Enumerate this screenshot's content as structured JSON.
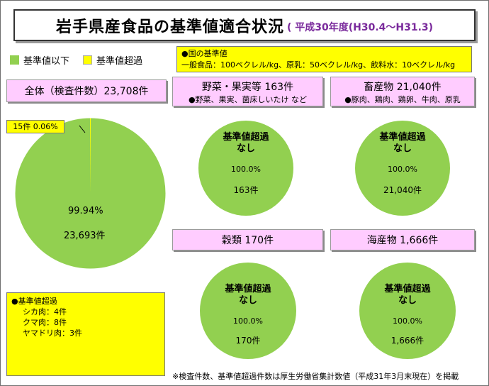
{
  "title": {
    "main": "岩手県産食品の基準値適合状況",
    "sub": "( 平成30年度(H30.4～H31.3)"
  },
  "legend": [
    {
      "label": "基準値以下",
      "color": "#92d050"
    },
    {
      "label": "基準値超過",
      "color": "#ffff00"
    }
  ],
  "standard": {
    "heading": "●国の基準値",
    "detail": "一般食品：100ベクレル/kg、原乳：50ベクレル/kg、飲料水：10ベクレル/kg"
  },
  "overall": {
    "header": "全体（検査件数）23,708件",
    "exceed_label": "15件  0.06%",
    "pct_label": "99.94%",
    "count_label": "23,693件"
  },
  "panels": [
    {
      "header": "野菜・果実等 163件",
      "sub": "●野菜、果実、菌床しいたけ など",
      "circle_title": "基準値超過",
      "circle_title2": "なし",
      "pct": "100.0%",
      "count": "163件"
    },
    {
      "header": "畜産物 21,040件",
      "sub": "●豚肉、鶏肉、鶏卵、牛肉、原乳",
      "circle_title": "基準値超過",
      "circle_title2": "なし",
      "pct": "100.0%",
      "count": "21,040件"
    },
    {
      "header": "穀類 170件",
      "sub": "",
      "circle_title": "基準値超過",
      "circle_title2": "なし",
      "pct": "100.0%",
      "count": "170件"
    },
    {
      "header": "海産物 1,666件",
      "sub": "",
      "circle_title": "基準値超過",
      "circle_title2": "なし",
      "pct": "100.0%",
      "count": "1,666件"
    }
  ],
  "exceed_note": {
    "heading": "●基準値超過",
    "items": [
      "シカ肉：4件",
      "クマ肉：8件",
      "ヤマドリ肉：3件"
    ]
  },
  "footnote": "※検査件数、基準値超過件数は厚生労働省集計数値（平成31年3月末現在）を掲載",
  "chart_data": [
    {
      "type": "pie",
      "title": "全体（検査件数）23,708件",
      "categories": [
        "基準値以下",
        "基準値超過"
      ],
      "values": [
        23693,
        15
      ],
      "percent": [
        99.94,
        0.06
      ]
    },
    {
      "type": "pie",
      "title": "野菜・果実等 163件",
      "categories": [
        "基準値以下",
        "基準値超過"
      ],
      "values": [
        163,
        0
      ],
      "percent": [
        100.0,
        0
      ]
    },
    {
      "type": "pie",
      "title": "畜産物 21,040件",
      "categories": [
        "基準値以下",
        "基準値超過"
      ],
      "values": [
        21040,
        0
      ],
      "percent": [
        100.0,
        0
      ]
    },
    {
      "type": "pie",
      "title": "穀類 170件",
      "categories": [
        "基準値以下",
        "基準値超過"
      ],
      "values": [
        170,
        0
      ],
      "percent": [
        100.0,
        0
      ]
    },
    {
      "type": "pie",
      "title": "海産物 1,666件",
      "categories": [
        "基準値以下",
        "基準値超過"
      ],
      "values": [
        1666,
        0
      ],
      "percent": [
        100.0,
        0
      ]
    }
  ]
}
